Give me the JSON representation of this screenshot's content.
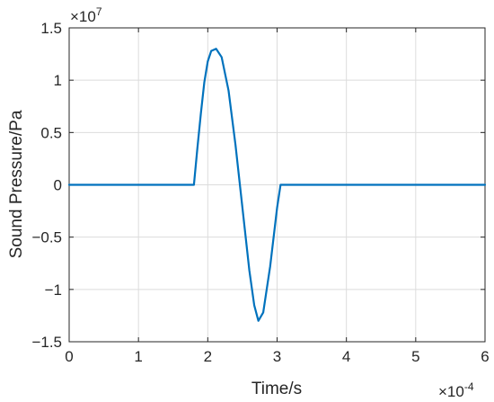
{
  "chart_data": {
    "type": "line",
    "title": "",
    "xlabel": "Time/s",
    "ylabel": "Sound Pressure/Pa",
    "x_exponent_label": {
      "base": "×10",
      "exp": "-4"
    },
    "y_exponent_label": {
      "base": "×10",
      "exp": "7"
    },
    "xlim": [
      0,
      6
    ],
    "ylim": [
      -1.5,
      1.5
    ],
    "x_ticks": [
      0,
      1,
      2,
      3,
      4,
      5,
      6
    ],
    "x_tick_labels": [
      "0",
      "1",
      "2",
      "3",
      "4",
      "5",
      "6"
    ],
    "y_ticks": [
      -1.5,
      -1,
      -0.5,
      0,
      0.5,
      1,
      1.5
    ],
    "y_tick_labels": [
      "−1.5",
      "−1",
      "−0.5",
      "0",
      "0.5",
      "1",
      "1.5"
    ],
    "grid": true,
    "line_color": "#0072BD",
    "series": [
      {
        "x": [
          0,
          1.8,
          1.85,
          1.9,
          1.95,
          2.0,
          2.05,
          2.12,
          2.2,
          2.3,
          2.4,
          2.5,
          2.6,
          2.67,
          2.73,
          2.8,
          2.9,
          3.0,
          3.05,
          3.5,
          4.0,
          5.0,
          6.0
        ],
        "y": [
          0,
          0,
          0.35,
          0.68,
          0.98,
          1.18,
          1.28,
          1.3,
          1.22,
          0.9,
          0.38,
          -0.22,
          -0.82,
          -1.15,
          -1.3,
          -1.22,
          -0.78,
          -0.22,
          0,
          0,
          0,
          0,
          0
        ]
      }
    ]
  }
}
